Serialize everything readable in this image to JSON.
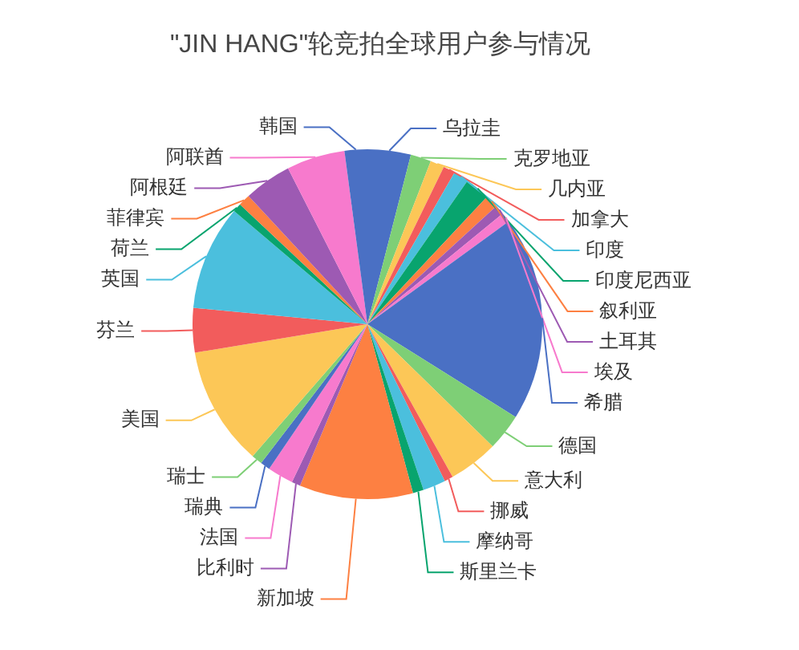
{
  "chart_data": {
    "type": "pie",
    "title": "\"JIN HANG\"轮竞拍全球用户参与情况",
    "categories": [
      "乌拉圭",
      "克罗地亚",
      "几内亚",
      "加拿大",
      "印度",
      "印度尼西亚",
      "叙利亚",
      "土耳其",
      "埃及",
      "希腊",
      "德国",
      "意大利",
      "挪威",
      "摩纳哥",
      "斯里兰卡",
      "新加坡",
      "比利时",
      "法国",
      "瑞典",
      "瑞士",
      "美国",
      "芬兰",
      "英国",
      "荷兰",
      "菲律宾",
      "阿根廷",
      "阿联酋",
      "韩国"
    ],
    "values": [
      4.0,
      1.9,
      1.3,
      1.1,
      1.4,
      2.3,
      1.2,
      0.9,
      0.9,
      18.9,
      3.4,
      4.6,
      0.8,
      2.1,
      1.0,
      10.5,
      0.8,
      2.4,
      0.9,
      1.0,
      11.0,
      4.1,
      9.7,
      0.8,
      1.1,
      4.4,
      5.4,
      2.1
    ],
    "colors": [
      "#4a70c4",
      "#7ecf76",
      "#fcc757",
      "#f25c5c",
      "#4bbfdd",
      "#08a46e",
      "#fd8042",
      "#9d5ab3",
      "#f77acd",
      "#4a70c4",
      "#7ecf76",
      "#fcc757",
      "#f25c5c",
      "#4bbfdd",
      "#08a46e",
      "#fd8042",
      "#9d5ab3",
      "#f77acd",
      "#4a70c4",
      "#7ecf76",
      "#fcc757",
      "#f25c5c",
      "#4bbfdd",
      "#08a46e",
      "#fd8042",
      "#9d5ab3",
      "#f77acd",
      "#4a70c4"
    ]
  }
}
